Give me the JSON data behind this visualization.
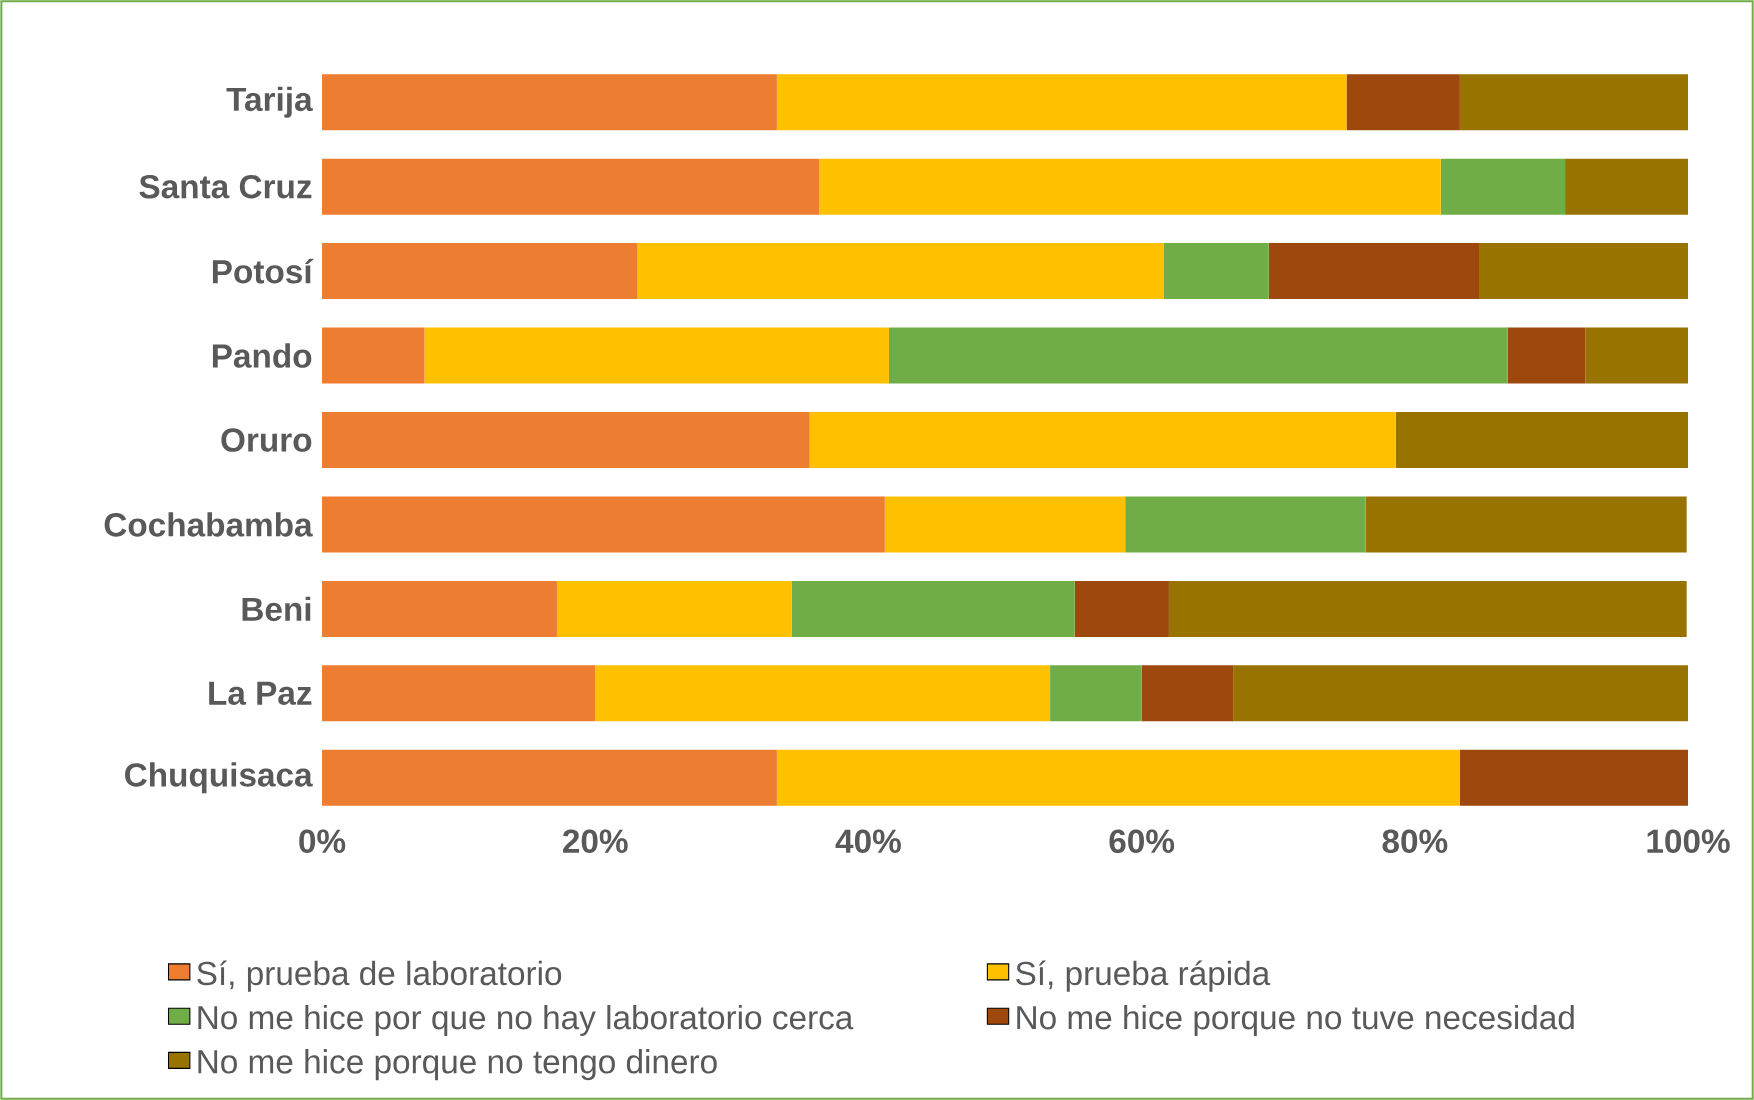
{
  "chart_data": {
    "type": "bar",
    "orientation": "horizontal",
    "stacked": true,
    "categories": [
      "Tarija",
      "Santa Cruz",
      "Potosí",
      "Pando",
      "Oruro",
      "Cochabamba",
      "Beni",
      "La Paz",
      "Chuquisaca"
    ],
    "series": [
      {
        "name": "Sí, prueba de laboratorio",
        "color": "#ed7d31",
        "values": [
          33.3,
          36.4,
          23.1,
          7.5,
          35.7,
          41.2,
          17.2,
          20,
          33.3
        ]
      },
      {
        "name": "Sí, prueba rápida",
        "color": "#ffc000",
        "values": [
          41.7,
          45.5,
          38.5,
          34,
          42.9,
          17.6,
          17.2,
          33.3,
          50
        ]
      },
      {
        "name": "No me hice por que no hay laboratorio cerca",
        "color": "#70ad47",
        "values": [
          0,
          9.1,
          7.7,
          45.3,
          0,
          17.6,
          20.7,
          6.7,
          0
        ]
      },
      {
        "name": "No me hice porque no tuve necesidad",
        "color": "#9e480e",
        "values": [
          8.3,
          0,
          15.4,
          5.7,
          0,
          0,
          6.9,
          6.7,
          16.7
        ]
      },
      {
        "name": "No me hice porque no tengo dinero",
        "color": "#997300",
        "values": [
          16.7,
          9.1,
          15.4,
          7.5,
          21.4,
          23.5,
          37.9,
          33.3,
          0
        ]
      }
    ],
    "xlim": [
      0,
      100
    ],
    "xticks": [
      {
        "value": 0,
        "label": "0%"
      },
      {
        "value": 20,
        "label": "20%"
      },
      {
        "value": 40,
        "label": "40%"
      },
      {
        "value": 60,
        "label": "60%"
      },
      {
        "value": 80,
        "label": "80%"
      },
      {
        "value": 100,
        "label": "100%"
      }
    ],
    "grid": false,
    "legend": "bottom"
  }
}
